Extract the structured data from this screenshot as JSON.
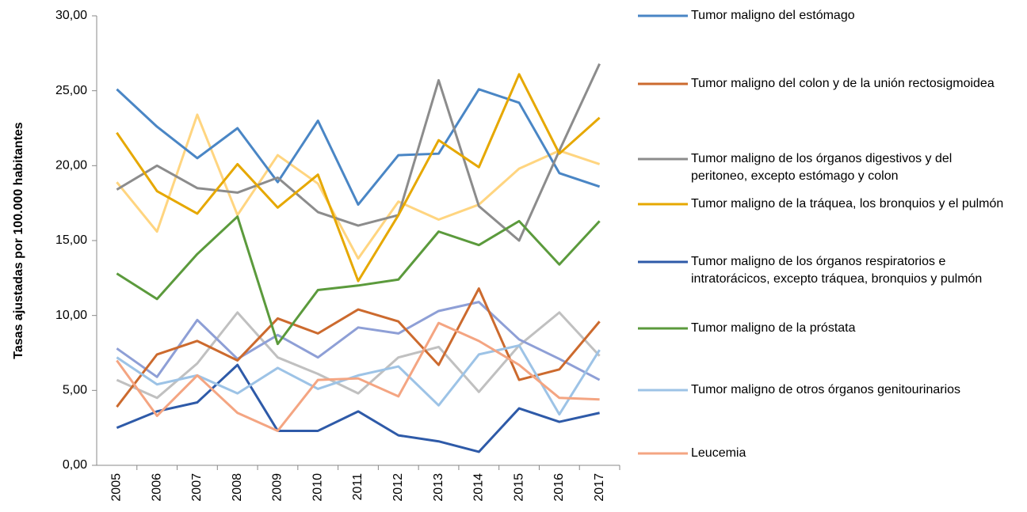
{
  "chart_data": {
    "type": "line",
    "y_label": "Tasas ajustadas por 100.000 habitantes",
    "categories": [
      "2005",
      "2006",
      "2007",
      "2008",
      "2009",
      "2010",
      "2011",
      "2012",
      "2013",
      "2014",
      "2015",
      "2016",
      "2017"
    ],
    "ylim": [
      0,
      30
    ],
    "yticks": [
      {
        "value": 0,
        "label": "0,00"
      },
      {
        "value": 5,
        "label": "5,00"
      },
      {
        "value": 10,
        "label": "10,00"
      },
      {
        "value": 15,
        "label": "15,00"
      },
      {
        "value": 20,
        "label": "20,00"
      },
      {
        "value": 25,
        "label": "25,00"
      },
      {
        "value": 30,
        "label": "30,00"
      }
    ],
    "grid": false,
    "legend": "right",
    "series": [
      {
        "name": "Tumor maligno del estómago",
        "color": "#4a86c5",
        "values": [
          25.1,
          22.6,
          20.5,
          22.5,
          18.9,
          23.0,
          17.4,
          20.7,
          20.8,
          25.1,
          24.2,
          19.5,
          18.6
        ]
      },
      {
        "name": "Tumor maligno del colon y de la unión rectosigmoidea",
        "color": "#cc6a2e",
        "values": [
          3.9,
          7.4,
          8.3,
          7.0,
          9.8,
          8.8,
          10.4,
          9.6,
          6.7,
          11.8,
          5.7,
          6.4,
          9.6
        ]
      },
      {
        "name": "Tumor maligno de los órganos digestivos y del peritoneo, excepto estómago y colon",
        "color": "#8c8c8c",
        "values": [
          18.4,
          20.0,
          18.5,
          18.2,
          19.2,
          16.9,
          16.0,
          16.7,
          25.7,
          17.3,
          15.0,
          21.0,
          26.8
        ]
      },
      {
        "name": "Tumor maligno de la tráquea, los bronquios y el pulmón",
        "color": "#e6a800",
        "values": [
          22.2,
          18.3,
          16.8,
          20.1,
          17.2,
          19.4,
          12.3,
          16.7,
          21.7,
          19.9,
          26.1,
          20.8,
          23.2
        ]
      },
      {
        "name": "Tumor maligno de los órganos respiratorios e intratorácicos, excepto tráquea, bronquios y pulmón",
        "color": "#2e5aa8",
        "values": [
          2.5,
          3.6,
          4.2,
          6.7,
          2.3,
          2.3,
          3.6,
          2.0,
          1.6,
          0.9,
          3.8,
          2.9,
          3.5
        ]
      },
      {
        "name": "Tumor maligno de la próstata",
        "color": "#5b9a3c",
        "values": [
          12.8,
          11.1,
          14.1,
          16.6,
          8.1,
          11.7,
          12.0,
          12.4,
          15.6,
          14.7,
          16.3,
          13.4,
          16.3
        ]
      },
      {
        "name": "Tumor maligno de otros órganos genitourinarios",
        "color": "#9dc3e6",
        "values": [
          7.2,
          5.4,
          6.0,
          4.8,
          6.5,
          5.1,
          6.0,
          6.6,
          4.0,
          7.4,
          8.0,
          3.4,
          7.7
        ]
      },
      {
        "name": "Leucemia",
        "color": "#f4a582",
        "values": [
          7.0,
          3.3,
          6.0,
          3.5,
          2.3,
          5.7,
          5.8,
          4.6,
          9.5,
          8.3,
          6.7,
          4.5,
          4.4
        ]
      },
      {
        "color": "#ffd580",
        "values": [
          18.9,
          15.6,
          23.4,
          16.7,
          20.7,
          18.8,
          13.8,
          17.6,
          16.4,
          17.4,
          19.8,
          21.0,
          20.1
        ]
      },
      {
        "color": "#c0c0c0",
        "values": [
          5.7,
          4.5,
          6.8,
          10.2,
          7.2,
          6.1,
          4.8,
          7.2,
          7.9,
          4.9,
          8.0,
          10.2,
          7.3
        ]
      },
      {
        "color": "#8e9fd6",
        "values": [
          7.8,
          5.9,
          9.7,
          7.1,
          8.7,
          7.2,
          9.2,
          8.8,
          10.3,
          10.9,
          8.4,
          7.1,
          5.7
        ]
      }
    ]
  }
}
